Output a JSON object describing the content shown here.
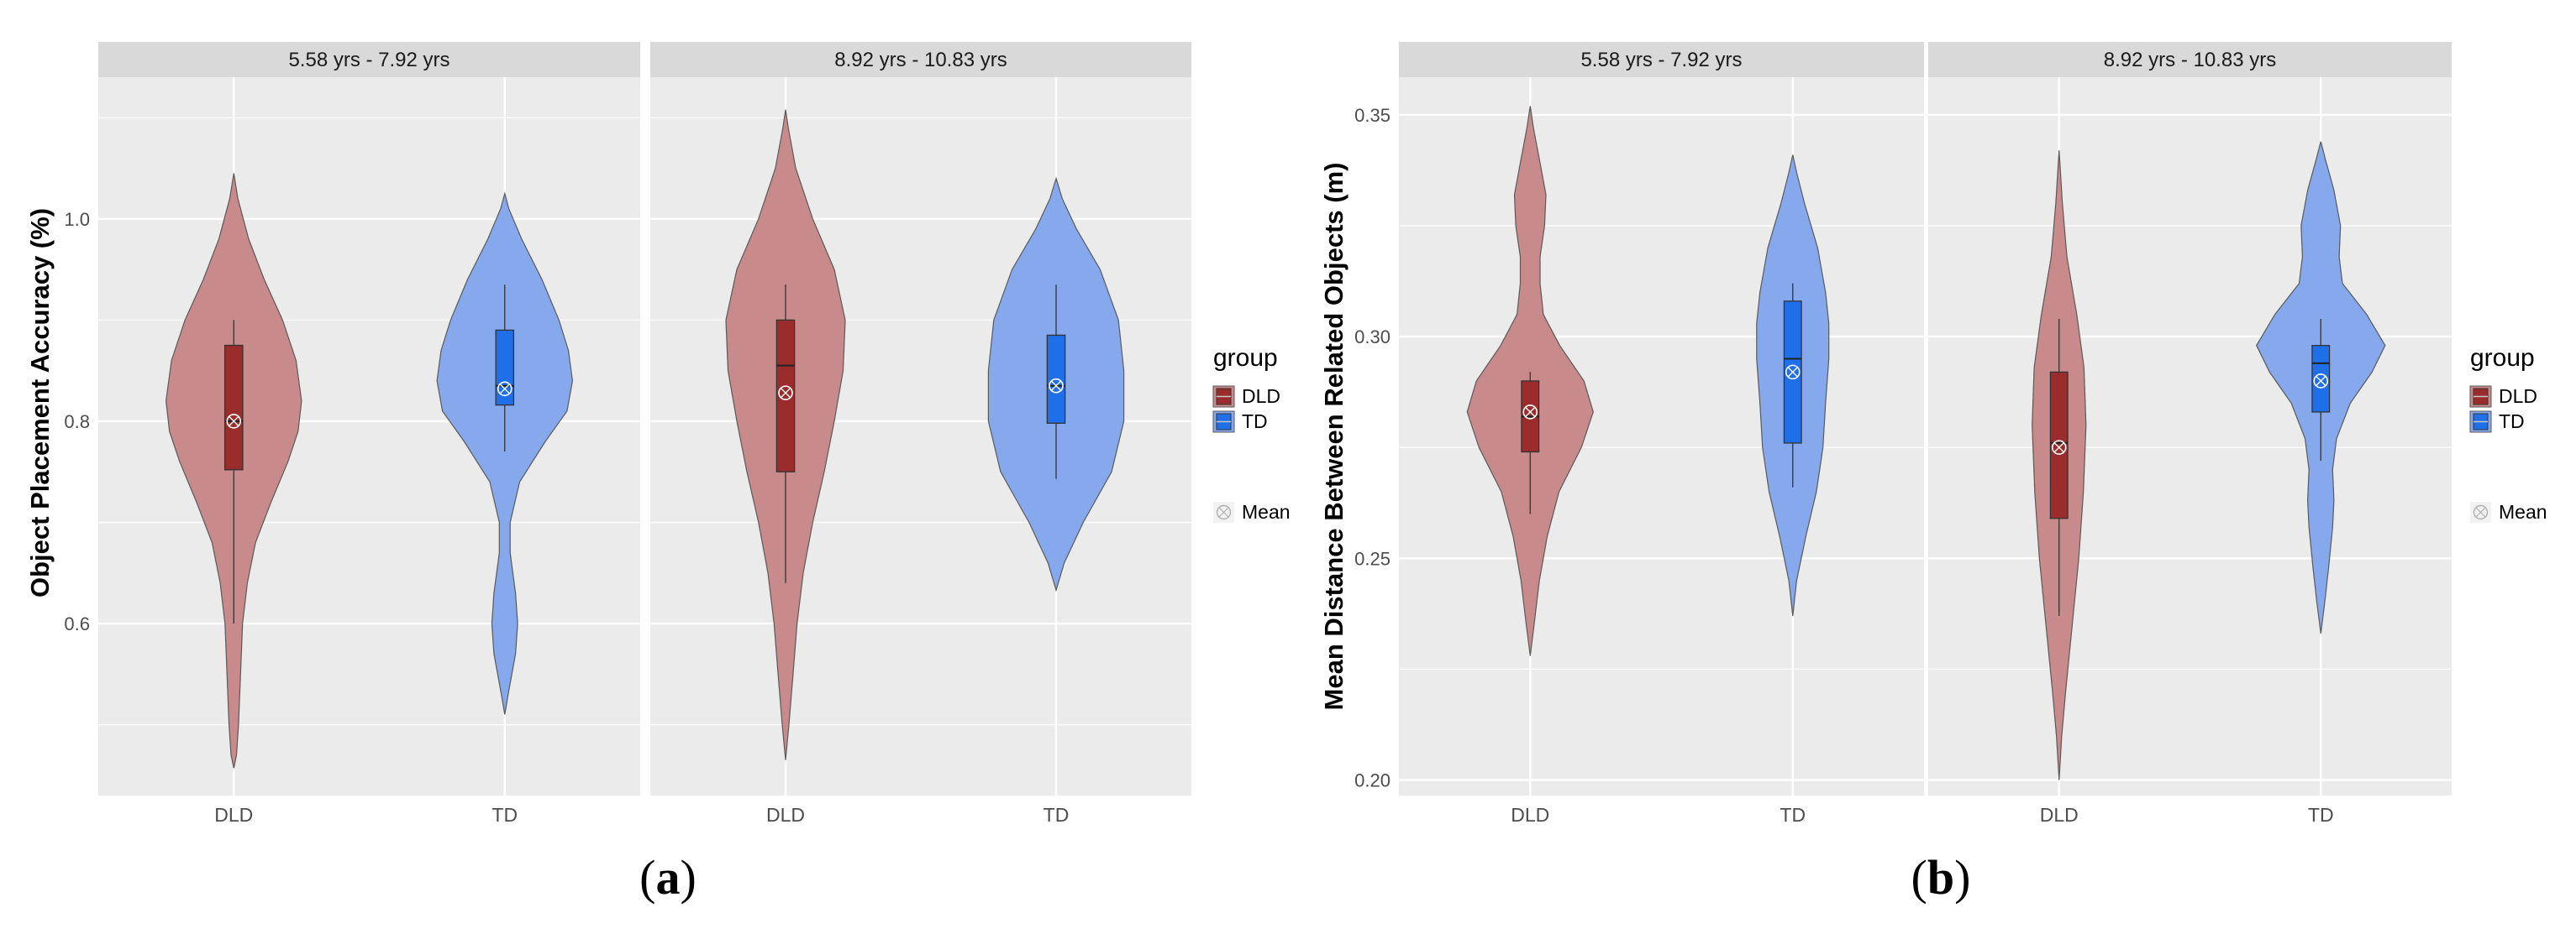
{
  "colors": {
    "DLD_box": "#9b2c2c",
    "DLD_violin": "#c88a8a",
    "TD_box": "#1f6fe8",
    "TD_violin": "#86a8ec",
    "panel_bg": "#ebebeb",
    "strip_bg": "#d9d9d9",
    "grid": "#ffffff"
  },
  "chart_data": [
    {
      "id": "a",
      "caption": {
        "prefix": "(",
        "letter": "a",
        "suffix": ")"
      },
      "type": "violin",
      "ylabel": "Object Placement Accuracy (%)",
      "ylim": [
        0.43,
        1.14
      ],
      "ybreaks": [
        0.6,
        0.8,
        1.0
      ],
      "ybreak_labels": [
        "0.6",
        "0.8",
        "1.0"
      ],
      "yminor": [
        0.5,
        0.7,
        0.9,
        1.1
      ],
      "categories": [
        "DLD",
        "TD"
      ],
      "legend": {
        "title": "group",
        "items": [
          "DLD",
          "TD"
        ],
        "mean_label": "Mean"
      },
      "facets": [
        {
          "label": "5.58 yrs - 7.92 yrs",
          "groups": [
            {
              "name": "DLD",
              "q1": 0.752,
              "median": 0.8,
              "q3": 0.875,
              "wlow": 0.6,
              "whigh": 0.9,
              "mean": 0.8,
              "density": [
                [
                  0.457,
                  0.0
                ],
                [
                  0.47,
                  0.04
                ],
                [
                  0.5,
                  0.07
                ],
                [
                  0.55,
                  0.1
                ],
                [
                  0.6,
                  0.13
                ],
                [
                  0.64,
                  0.2
                ],
                [
                  0.68,
                  0.32
                ],
                [
                  0.72,
                  0.55
                ],
                [
                  0.76,
                  0.8
                ],
                [
                  0.79,
                  0.95
                ],
                [
                  0.82,
                  1.0
                ],
                [
                  0.86,
                  0.92
                ],
                [
                  0.9,
                  0.72
                ],
                [
                  0.94,
                  0.45
                ],
                [
                  0.98,
                  0.22
                ],
                [
                  1.02,
                  0.06
                ],
                [
                  1.045,
                  0.0
                ]
              ]
            },
            {
              "name": "TD",
              "q1": 0.816,
              "median": 0.835,
              "q3": 0.89,
              "wlow": 0.77,
              "whigh": 0.935,
              "mean": 0.832,
              "density": [
                [
                  0.51,
                  0.0
                ],
                [
                  0.53,
                  0.05
                ],
                [
                  0.57,
                  0.16
                ],
                [
                  0.6,
                  0.19
                ],
                [
                  0.63,
                  0.16
                ],
                [
                  0.67,
                  0.08
                ],
                [
                  0.7,
                  0.08
                ],
                [
                  0.74,
                  0.22
                ],
                [
                  0.78,
                  0.6
                ],
                [
                  0.81,
                  0.92
                ],
                [
                  0.84,
                  1.0
                ],
                [
                  0.87,
                  0.94
                ],
                [
                  0.9,
                  0.8
                ],
                [
                  0.94,
                  0.55
                ],
                [
                  0.98,
                  0.25
                ],
                [
                  1.01,
                  0.06
                ],
                [
                  1.025,
                  0.0
                ]
              ]
            }
          ]
        },
        {
          "label": "8.92 yrs - 10.83 yrs",
          "groups": [
            {
              "name": "DLD",
              "q1": 0.75,
              "median": 0.855,
              "q3": 0.9,
              "wlow": 0.64,
              "whigh": 0.935,
              "mean": 0.828,
              "density": [
                [
                  0.465,
                  0.0
                ],
                [
                  0.5,
                  0.05
                ],
                [
                  0.55,
                  0.11
                ],
                [
                  0.6,
                  0.17
                ],
                [
                  0.65,
                  0.26
                ],
                [
                  0.7,
                  0.4
                ],
                [
                  0.75,
                  0.57
                ],
                [
                  0.8,
                  0.72
                ],
                [
                  0.85,
                  0.85
                ],
                [
                  0.9,
                  0.88
                ],
                [
                  0.95,
                  0.72
                ],
                [
                  1.0,
                  0.4
                ],
                [
                  1.05,
                  0.15
                ],
                [
                  1.09,
                  0.04
                ],
                [
                  1.108,
                  0.0
                ]
              ]
            },
            {
              "name": "TD",
              "q1": 0.798,
              "median": 0.835,
              "q3": 0.885,
              "wlow": 0.743,
              "whigh": 0.935,
              "mean": 0.835,
              "density": [
                [
                  0.633,
                  0.0
                ],
                [
                  0.66,
                  0.12
                ],
                [
                  0.7,
                  0.4
                ],
                [
                  0.75,
                  0.82
                ],
                [
                  0.8,
                  1.0
                ],
                [
                  0.85,
                  1.0
                ],
                [
                  0.9,
                  0.92
                ],
                [
                  0.95,
                  0.65
                ],
                [
                  0.99,
                  0.3
                ],
                [
                  1.02,
                  0.09
                ],
                [
                  1.04,
                  0.0
                ]
              ]
            }
          ]
        }
      ]
    },
    {
      "id": "b",
      "caption": {
        "prefix": "(",
        "letter": "b",
        "suffix": ")"
      },
      "type": "violin",
      "ylabel": "Mean Distance Between Related Objects (m)",
      "ylim": [
        0.1965,
        0.3585
      ],
      "ybreaks": [
        0.2,
        0.25,
        0.3,
        0.35
      ],
      "ybreak_labels": [
        "0.20",
        "0.25",
        "0.30",
        "0.35"
      ],
      "yminor": [
        0.225,
        0.275,
        0.325
      ],
      "categories": [
        "DLD",
        "TD"
      ],
      "legend": {
        "title": "group",
        "items": [
          "DLD",
          "TD"
        ],
        "mean_label": "Mean"
      },
      "facets": [
        {
          "label": "5.58 yrs - 7.92 yrs",
          "groups": [
            {
              "name": "DLD",
              "q1": 0.274,
              "median": 0.282,
              "q3": 0.29,
              "wlow": 0.26,
              "whigh": 0.292,
              "mean": 0.283,
              "density": [
                [
                  0.228,
                  0.0
                ],
                [
                  0.235,
                  0.06
                ],
                [
                  0.245,
                  0.14
                ],
                [
                  0.255,
                  0.26
                ],
                [
                  0.265,
                  0.44
                ],
                [
                  0.275,
                  0.78
                ],
                [
                  0.283,
                  0.96
                ],
                [
                  0.29,
                  0.82
                ],
                [
                  0.298,
                  0.45
                ],
                [
                  0.305,
                  0.2
                ],
                [
                  0.312,
                  0.15
                ],
                [
                  0.318,
                  0.15
                ],
                [
                  0.325,
                  0.22
                ],
                [
                  0.332,
                  0.24
                ],
                [
                  0.34,
                  0.14
                ],
                [
                  0.347,
                  0.05
                ],
                [
                  0.352,
                  0.0
                ]
              ]
            },
            {
              "name": "TD",
              "q1": 0.276,
              "median": 0.295,
              "q3": 0.308,
              "wlow": 0.266,
              "whigh": 0.312,
              "mean": 0.292,
              "density": [
                [
                  0.237,
                  0.0
                ],
                [
                  0.245,
                  0.06
                ],
                [
                  0.255,
                  0.2
                ],
                [
                  0.265,
                  0.36
                ],
                [
                  0.275,
                  0.46
                ],
                [
                  0.285,
                  0.5
                ],
                [
                  0.295,
                  0.55
                ],
                [
                  0.303,
                  0.55
                ],
                [
                  0.31,
                  0.5
                ],
                [
                  0.32,
                  0.38
                ],
                [
                  0.33,
                  0.18
                ],
                [
                  0.337,
                  0.06
                ],
                [
                  0.341,
                  0.0
                ]
              ]
            }
          ]
        },
        {
          "label": "8.92 yrs - 10.83 yrs",
          "groups": [
            {
              "name": "DLD",
              "q1": 0.259,
              "median": 0.276,
              "q3": 0.292,
              "wlow": 0.237,
              "whigh": 0.304,
              "mean": 0.275,
              "density": [
                [
                  0.2,
                  0.0
                ],
                [
                  0.21,
                  0.04
                ],
                [
                  0.22,
                  0.1
                ],
                [
                  0.235,
                  0.2
                ],
                [
                  0.25,
                  0.3
                ],
                [
                  0.265,
                  0.37
                ],
                [
                  0.28,
                  0.41
                ],
                [
                  0.293,
                  0.38
                ],
                [
                  0.305,
                  0.27
                ],
                [
                  0.318,
                  0.12
                ],
                [
                  0.33,
                  0.05
                ],
                [
                  0.342,
                  0.0
                ]
              ]
            },
            {
              "name": "TD",
              "q1": 0.283,
              "median": 0.294,
              "q3": 0.298,
              "wlow": 0.272,
              "whigh": 0.304,
              "mean": 0.29,
              "density": [
                [
                  0.233,
                  0.0
                ],
                [
                  0.24,
                  0.06
                ],
                [
                  0.248,
                  0.12
                ],
                [
                  0.257,
                  0.18
                ],
                [
                  0.263,
                  0.2
                ],
                [
                  0.27,
                  0.18
                ],
                [
                  0.277,
                  0.24
                ],
                [
                  0.285,
                  0.45
                ],
                [
                  0.292,
                  0.78
                ],
                [
                  0.298,
                  0.98
                ],
                [
                  0.305,
                  0.7
                ],
                [
                  0.312,
                  0.33
                ],
                [
                  0.318,
                  0.28
                ],
                [
                  0.325,
                  0.3
                ],
                [
                  0.333,
                  0.2
                ],
                [
                  0.34,
                  0.07
                ],
                [
                  0.344,
                  0.0
                ]
              ]
            }
          ]
        }
      ]
    }
  ]
}
